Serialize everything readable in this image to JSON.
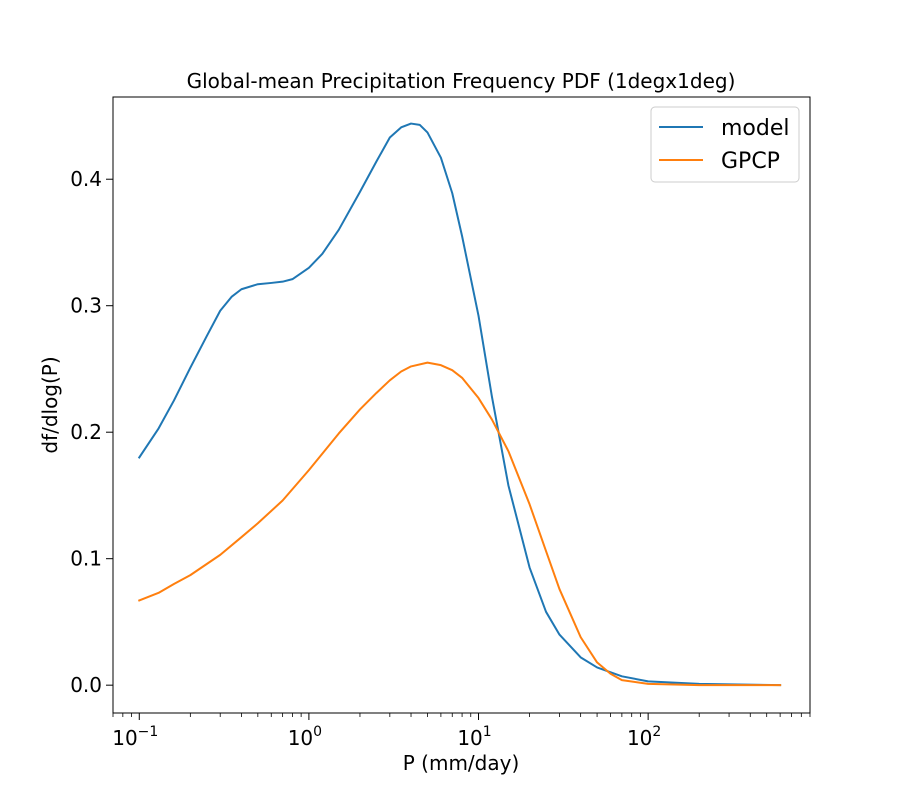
{
  "chart_data": {
    "type": "line",
    "title": "Global-mean Precipitation Frequency PDF (1degx1deg)",
    "xlabel": "P (mm/day)",
    "ylabel": "df/dlog(P)",
    "x_scale": "log",
    "xlim": [
      0.07,
      900
    ],
    "ylim": [
      -0.022,
      0.465
    ],
    "x_ticks": [
      {
        "value": 0.1,
        "base": "10",
        "exp": "−1"
      },
      {
        "value": 1,
        "base": "10",
        "exp": "0"
      },
      {
        "value": 10,
        "base": "10",
        "exp": "1"
      },
      {
        "value": 100,
        "base": "10",
        "exp": "2"
      }
    ],
    "y_ticks": [
      {
        "value": 0.0,
        "label": "0.0"
      },
      {
        "value": 0.1,
        "label": "0.1"
      },
      {
        "value": 0.2,
        "label": "0.2"
      },
      {
        "value": 0.3,
        "label": "0.3"
      },
      {
        "value": 0.4,
        "label": "0.4"
      }
    ],
    "grid": false,
    "legend_position": "top-right",
    "series": [
      {
        "name": "model",
        "color": "#1f77b4",
        "points": [
          [
            0.1,
            0.18
          ],
          [
            0.13,
            0.203
          ],
          [
            0.16,
            0.225
          ],
          [
            0.2,
            0.251
          ],
          [
            0.25,
            0.276
          ],
          [
            0.3,
            0.296
          ],
          [
            0.35,
            0.307
          ],
          [
            0.4,
            0.313
          ],
          [
            0.5,
            0.317
          ],
          [
            0.6,
            0.318
          ],
          [
            0.7,
            0.319
          ],
          [
            0.8,
            0.321
          ],
          [
            1.0,
            0.33
          ],
          [
            1.2,
            0.341
          ],
          [
            1.5,
            0.36
          ],
          [
            2.0,
            0.39
          ],
          [
            2.5,
            0.414
          ],
          [
            3.0,
            0.433
          ],
          [
            3.5,
            0.441
          ],
          [
            4.0,
            0.444
          ],
          [
            4.5,
            0.443
          ],
          [
            5.0,
            0.437
          ],
          [
            6.0,
            0.417
          ],
          [
            7.0,
            0.389
          ],
          [
            8.0,
            0.355
          ],
          [
            10.0,
            0.292
          ],
          [
            12.0,
            0.228
          ],
          [
            15.0,
            0.158
          ],
          [
            20.0,
            0.093
          ],
          [
            25.0,
            0.058
          ],
          [
            30.0,
            0.04
          ],
          [
            40.0,
            0.022
          ],
          [
            50.0,
            0.014
          ],
          [
            70.0,
            0.007
          ],
          [
            100.0,
            0.003
          ],
          [
            200.0,
            0.001
          ],
          [
            600.0,
            0.0
          ]
        ]
      },
      {
        "name": "GPCP",
        "color": "#ff7f0e",
        "points": [
          [
            0.1,
            0.067
          ],
          [
            0.13,
            0.073
          ],
          [
            0.16,
            0.08
          ],
          [
            0.2,
            0.087
          ],
          [
            0.3,
            0.103
          ],
          [
            0.4,
            0.117
          ],
          [
            0.5,
            0.128
          ],
          [
            0.7,
            0.146
          ],
          [
            1.0,
            0.17
          ],
          [
            1.5,
            0.199
          ],
          [
            2.0,
            0.218
          ],
          [
            2.5,
            0.231
          ],
          [
            3.0,
            0.241
          ],
          [
            3.5,
            0.248
          ],
          [
            4.0,
            0.252
          ],
          [
            5.0,
            0.255
          ],
          [
            6.0,
            0.253
          ],
          [
            7.0,
            0.249
          ],
          [
            8.0,
            0.243
          ],
          [
            10.0,
            0.227
          ],
          [
            12.0,
            0.21
          ],
          [
            15.0,
            0.185
          ],
          [
            20.0,
            0.143
          ],
          [
            25.0,
            0.106
          ],
          [
            30.0,
            0.076
          ],
          [
            40.0,
            0.038
          ],
          [
            50.0,
            0.018
          ],
          [
            60.0,
            0.009
          ],
          [
            70.0,
            0.004
          ],
          [
            100.0,
            0.001
          ],
          [
            200.0,
            0.0
          ],
          [
            600.0,
            0.0
          ]
        ]
      }
    ]
  }
}
